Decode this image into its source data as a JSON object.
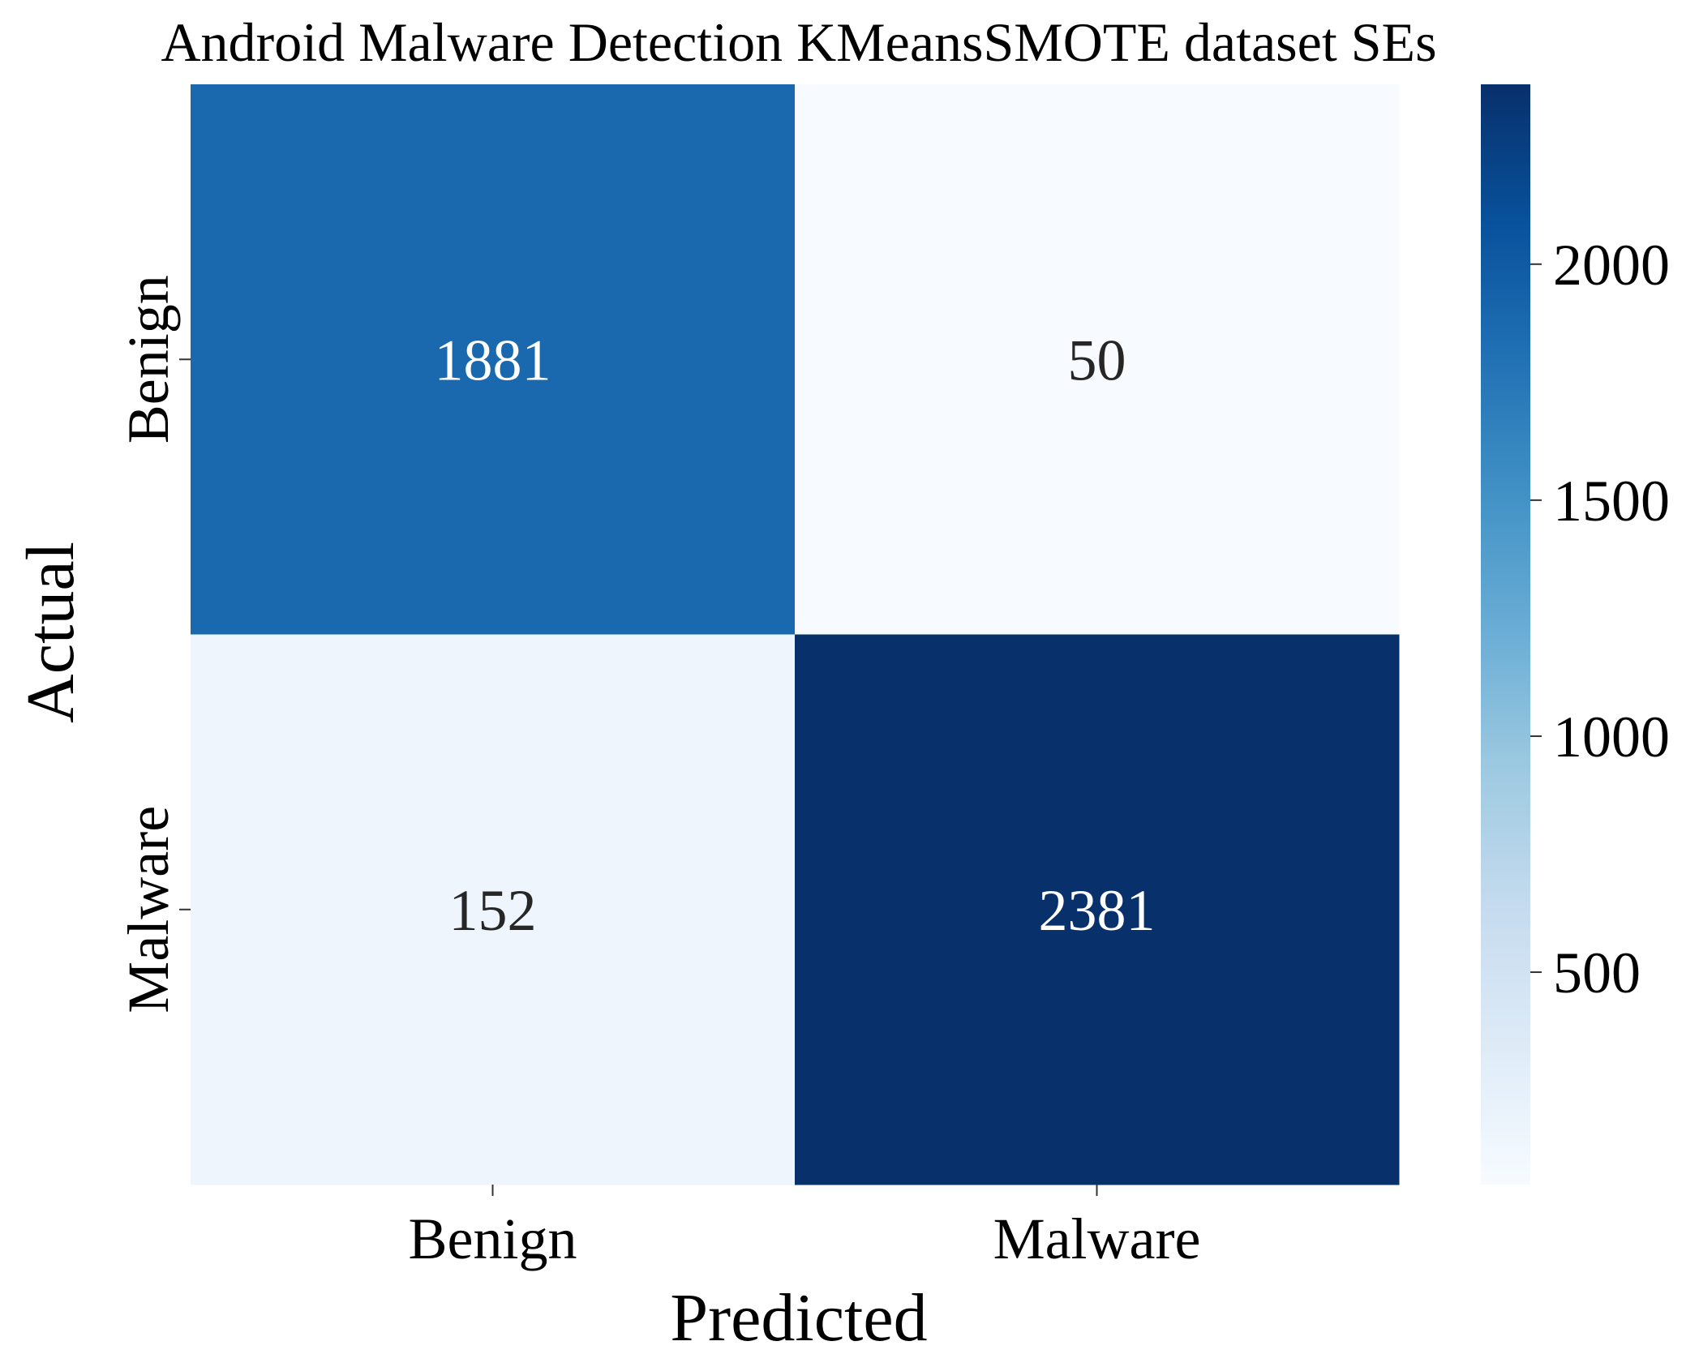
{
  "chart_data": {
    "type": "heatmap",
    "title": "Android Malware Detection KMeansSMOTE dataset SEs",
    "xlabel": "Predicted",
    "ylabel": "Actual",
    "x_categories": [
      "Benign",
      "Malware"
    ],
    "y_categories": [
      "Benign",
      "Malware"
    ],
    "values": [
      [
        1881,
        50
      ],
      [
        152,
        2381
      ]
    ],
    "colormap": "Blues",
    "colorbar": {
      "min": 50,
      "max": 2381,
      "ticks": [
        500,
        1000,
        1500,
        2000
      ]
    },
    "grid": false,
    "colors": {
      "light_text": "#ffffff",
      "dark_text": "#262626"
    }
  }
}
